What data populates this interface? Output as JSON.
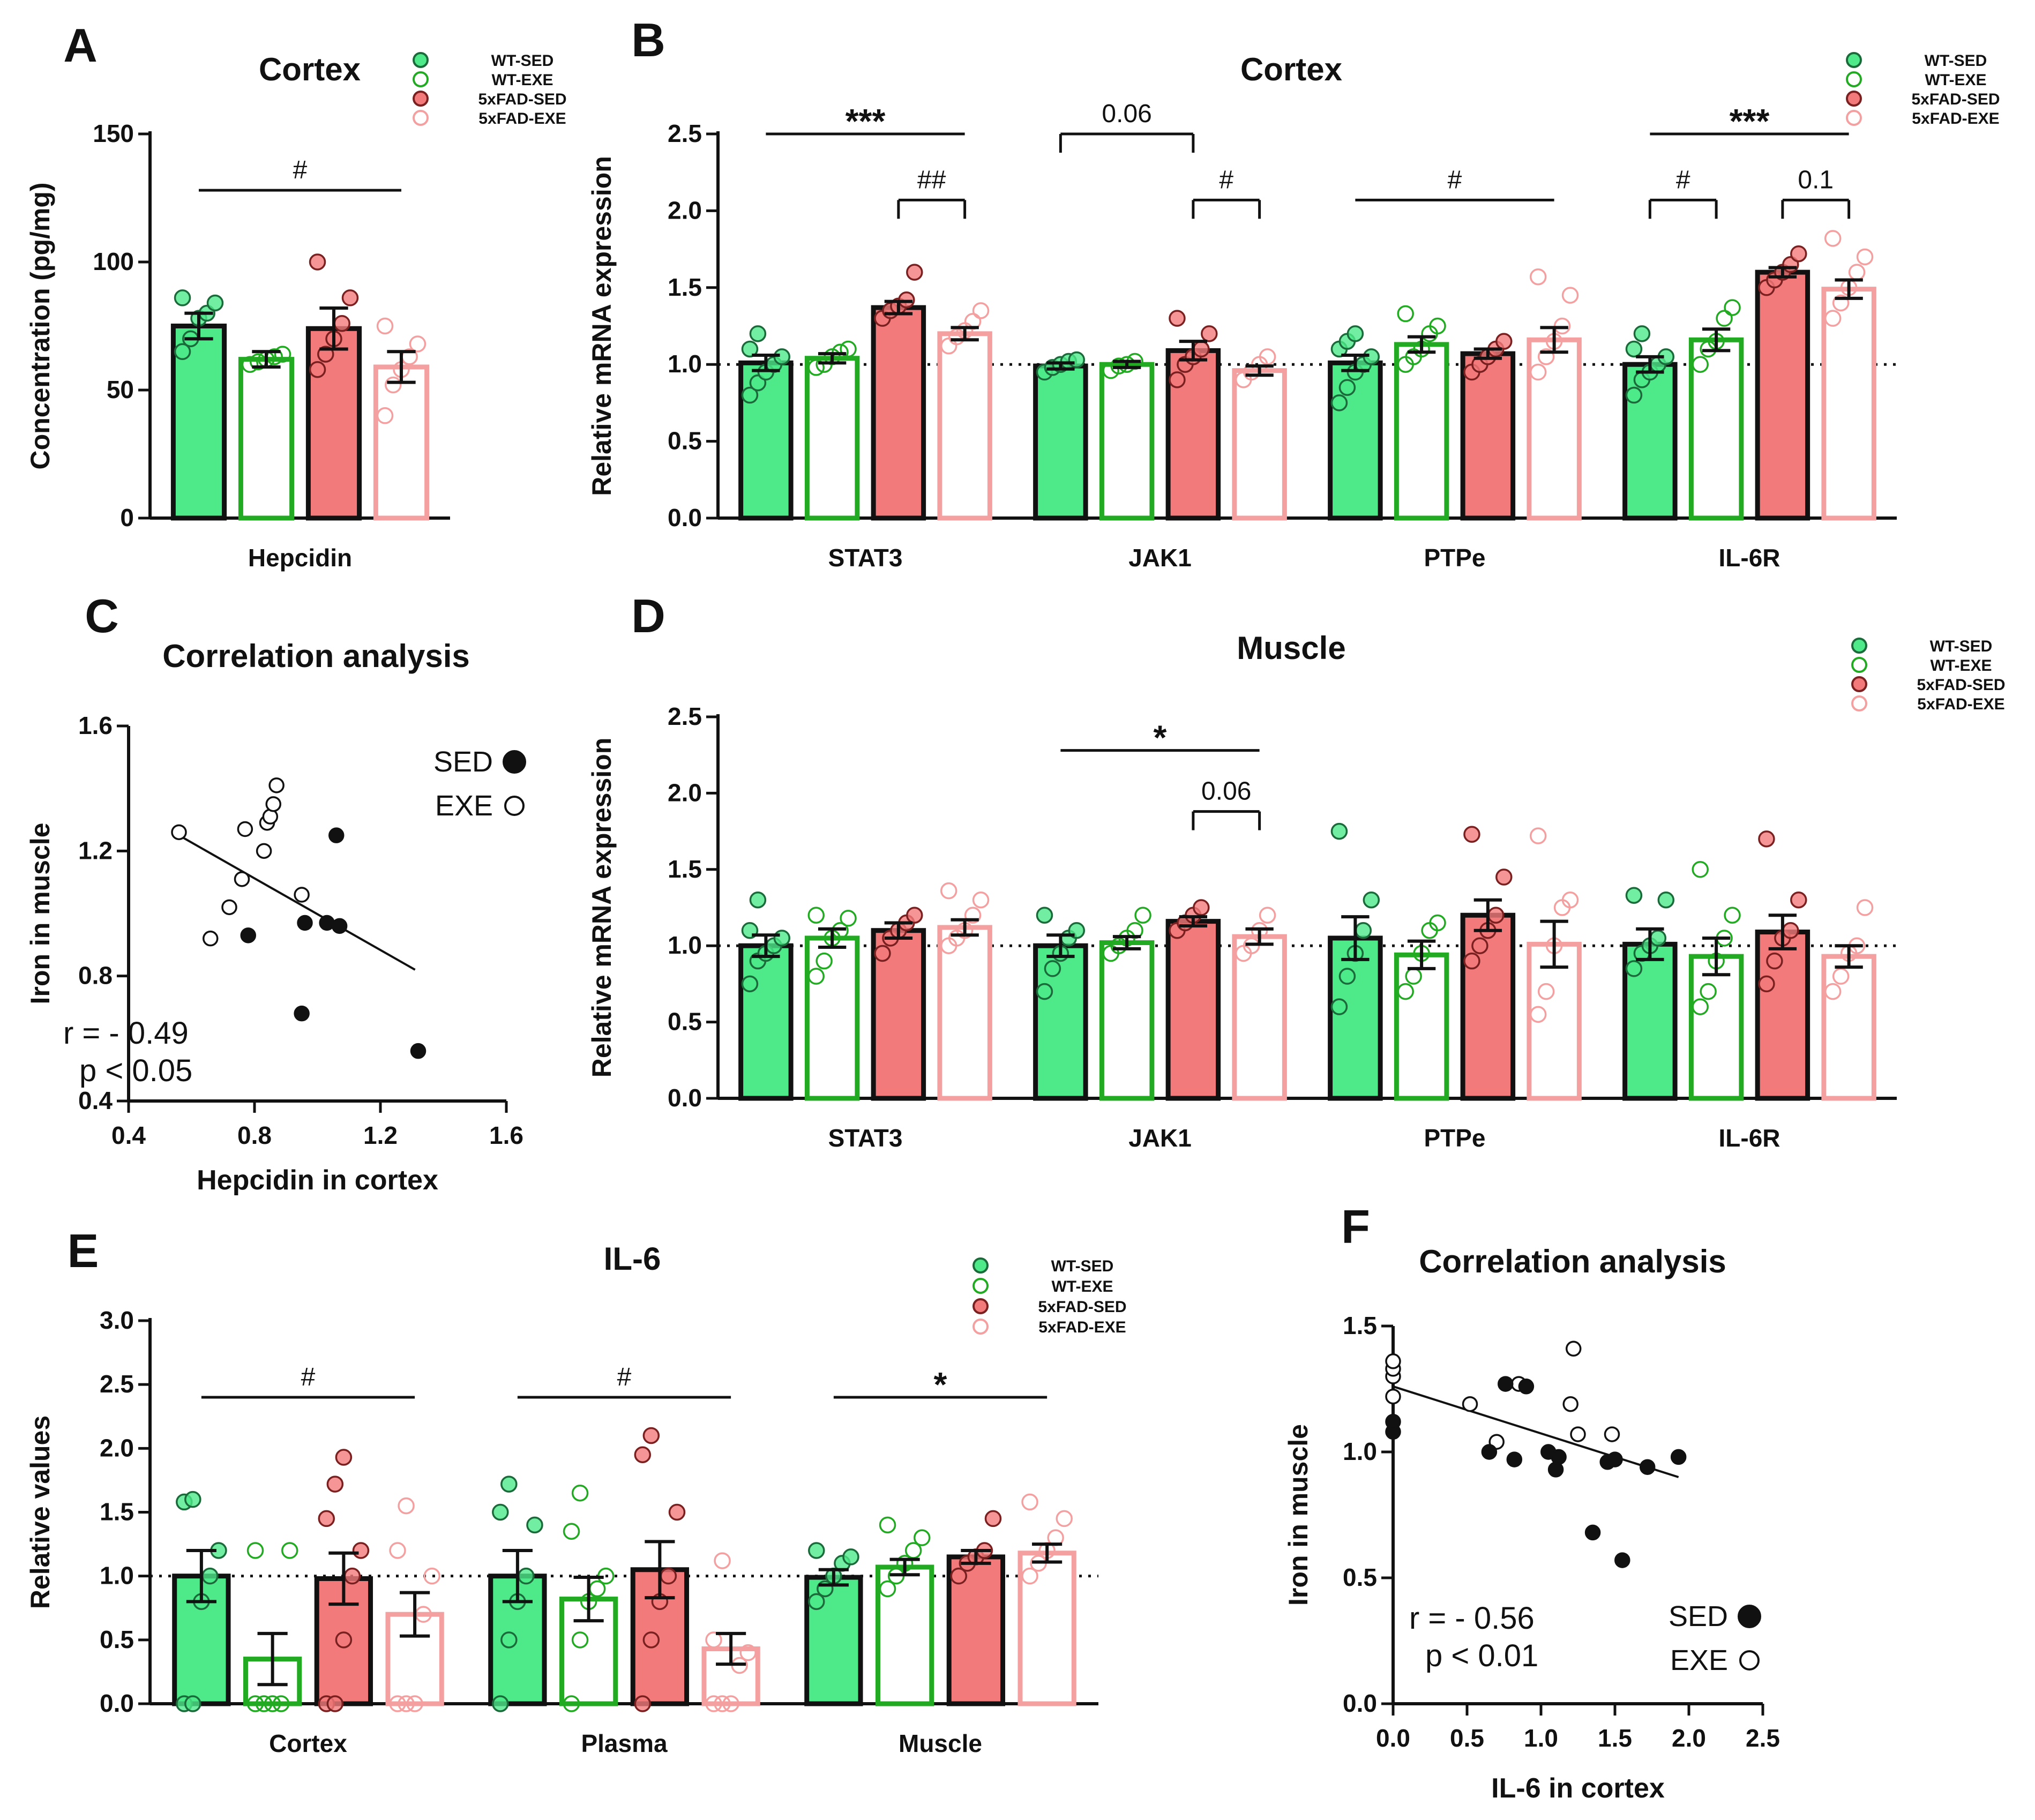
{
  "colors": {
    "wt_sed": "#4eea8a",
    "wt_exe": "#22aa22",
    "fad_sed": "#f27a7a",
    "fad_exe": "#f5a0a0",
    "stat_red": "#e8201a",
    "axis": "#111111"
  },
  "legend": {
    "labels": [
      "WT-SED",
      "WT-EXE",
      "5xFAD-SED",
      "5xFAD-EXE"
    ]
  },
  "corr_legend": {
    "sed": "SED",
    "exe": "EXE"
  },
  "chart_data": [
    {
      "id": "A",
      "panel_letter": "A",
      "type": "bar",
      "title": "Cortex",
      "ylabel": "Concentration (pg/mg)",
      "xlabel": "",
      "categories": [
        "Hepcidin"
      ],
      "ylim": [
        0,
        150
      ],
      "yticks": [
        0,
        50,
        100,
        150
      ],
      "yticklabels": [
        "0",
        "50",
        "100",
        "150"
      ],
      "reference_line": null,
      "series": [
        {
          "name": "WT-SED",
          "values": [
            75
          ],
          "errors": [
            5
          ],
          "points": [
            [
              65,
              70,
              78,
              80,
              84,
              86
            ]
          ]
        },
        {
          "name": "WT-EXE",
          "values": [
            62
          ],
          "errors": [
            3
          ],
          "points": [
            [
              60,
              61,
              62,
              63,
              64
            ]
          ]
        },
        {
          "name": "5xFAD-SED",
          "values": [
            74
          ],
          "errors": [
            8
          ],
          "points": [
            [
              58,
              64,
              70,
              76,
              86,
              100
            ]
          ]
        },
        {
          "name": "5xFAD-EXE",
          "values": [
            59
          ],
          "errors": [
            6
          ],
          "points": [
            [
              40,
              52,
              58,
              63,
              68,
              75
            ]
          ]
        }
      ],
      "annotations": [
        {
          "type": "line",
          "label": "#",
          "cat": 0,
          "from": 0,
          "to": 3,
          "y": 128
        }
      ]
    },
    {
      "id": "B",
      "panel_letter": "B",
      "type": "bar",
      "title": "Cortex",
      "ylabel": "Relative mRNA expression",
      "xlabel": "",
      "categories": [
        "STAT3",
        "JAK1",
        "PTPe",
        "IL-6R"
      ],
      "ylim": [
        0,
        2.5
      ],
      "yticks": [
        0,
        0.5,
        1.0,
        1.5,
        2.0,
        2.5
      ],
      "yticklabels": [
        "0.0",
        "0.5",
        "1.0",
        "1.5",
        "2.0",
        "2.5"
      ],
      "reference_line": 1.0,
      "series": [
        {
          "name": "WT-SED",
          "values": [
            1.01,
            0.99,
            1.01,
            1.0
          ],
          "errors": [
            0.05,
            0.02,
            0.05,
            0.05
          ],
          "points": [
            [
              0.8,
              0.88,
              0.95,
              1.0,
              1.05,
              1.1,
              1.2
            ],
            [
              0.95,
              0.98,
              1.0,
              1.02,
              1.03
            ],
            [
              0.75,
              0.85,
              0.95,
              1.0,
              1.05,
              1.1,
              1.15,
              1.2
            ],
            [
              0.8,
              0.9,
              0.95,
              1.0,
              1.05,
              1.1,
              1.2
            ]
          ]
        },
        {
          "name": "WT-EXE",
          "values": [
            1.04,
            1.0,
            1.13,
            1.16
          ],
          "errors": [
            0.03,
            0.02,
            0.05,
            0.07
          ],
          "points": [
            [
              0.98,
              1.0,
              1.05,
              1.08,
              1.1
            ],
            [
              0.96,
              0.99,
              1.0,
              1.02
            ],
            [
              1.0,
              1.05,
              1.1,
              1.2,
              1.25,
              1.33
            ],
            [
              1.0,
              1.1,
              1.15,
              1.3,
              1.37
            ]
          ]
        },
        {
          "name": "5xFAD-SED",
          "values": [
            1.37,
            1.09,
            1.07,
            1.6
          ],
          "errors": [
            0.04,
            0.06,
            0.03,
            0.03
          ],
          "points": [
            [
              1.3,
              1.35,
              1.38,
              1.42,
              1.6
            ],
            [
              0.9,
              1.0,
              1.05,
              1.1,
              1.2,
              1.3
            ],
            [
              0.95,
              1.0,
              1.05,
              1.1,
              1.15
            ],
            [
              1.5,
              1.55,
              1.6,
              1.65,
              1.72
            ]
          ]
        },
        {
          "name": "5xFAD-EXE",
          "values": [
            1.2,
            0.96,
            1.16,
            1.49
          ],
          "errors": [
            0.04,
            0.03,
            0.08,
            0.06
          ],
          "points": [
            [
              1.12,
              1.18,
              1.22,
              1.28,
              1.35
            ],
            [
              0.9,
              0.95,
              1.0,
              1.05
            ],
            [
              0.95,
              1.05,
              1.15,
              1.25,
              1.45,
              1.57
            ],
            [
              1.3,
              1.4,
              1.5,
              1.6,
              1.7,
              1.82
            ]
          ]
        }
      ],
      "annotations": [
        {
          "type": "line",
          "label": "***",
          "cat": 0,
          "from": 0,
          "to": 3,
          "y": 2.5
        },
        {
          "type": "bracket",
          "label": "##",
          "cat": 0,
          "from": 2,
          "to": 3,
          "y": 2.07
        },
        {
          "type": "bracket",
          "label": "0.06",
          "cat": 1,
          "from": 0,
          "to": 2,
          "y": 2.5
        },
        {
          "type": "bracket",
          "label": "#",
          "cat": 1,
          "from": 2,
          "to": 3,
          "y": 2.07
        },
        {
          "type": "line",
          "label": "#",
          "cat": 2,
          "from": 0,
          "to": 3,
          "y": 2.07
        },
        {
          "type": "line",
          "label": "***",
          "cat": 3,
          "from": 0,
          "to": 3,
          "y": 2.5
        },
        {
          "type": "bracket",
          "label": "#",
          "cat": 3,
          "from": 0,
          "to": 1,
          "y": 2.07
        },
        {
          "type": "bracket",
          "label": "0.1",
          "cat": 3,
          "from": 2,
          "to": 3,
          "y": 2.07
        }
      ]
    },
    {
      "id": "D",
      "panel_letter": "D",
      "type": "bar",
      "title": "Muscle",
      "ylabel": "Relative mRNA expression",
      "xlabel": "",
      "categories": [
        "STAT3",
        "JAK1",
        "PTPe",
        "IL-6R"
      ],
      "ylim": [
        0,
        2.5
      ],
      "yticks": [
        0,
        0.5,
        1.0,
        1.5,
        2.0,
        2.5
      ],
      "yticklabels": [
        "0.0",
        "0.5",
        "1.0",
        "1.5",
        "2.0",
        "2.5"
      ],
      "reference_line": 1.0,
      "series": [
        {
          "name": "WT-SED",
          "values": [
            1.0,
            1.0,
            1.05,
            1.01
          ],
          "errors": [
            0.07,
            0.07,
            0.14,
            0.1
          ],
          "points": [
            [
              0.75,
              0.9,
              0.95,
              1.0,
              1.05,
              1.1,
              1.3
            ],
            [
              0.7,
              0.85,
              0.95,
              1.05,
              1.1,
              1.2
            ],
            [
              0.6,
              0.8,
              0.95,
              1.1,
              1.3,
              1.75
            ],
            [
              0.85,
              0.95,
              1.0,
              1.05,
              1.3,
              1.33
            ]
          ]
        },
        {
          "name": "WT-EXE",
          "values": [
            1.05,
            1.02,
            0.94,
            0.93
          ],
          "errors": [
            0.06,
            0.04,
            0.09,
            0.12
          ],
          "points": [
            [
              0.8,
              0.9,
              1.05,
              1.1,
              1.18,
              1.2
            ],
            [
              0.95,
              1.0,
              1.05,
              1.1,
              1.2
            ],
            [
              0.7,
              0.8,
              0.95,
              1.1,
              1.15
            ],
            [
              0.6,
              0.7,
              0.9,
              1.05,
              1.2,
              1.5
            ]
          ]
        },
        {
          "name": "5xFAD-SED",
          "values": [
            1.1,
            1.16,
            1.2,
            1.09
          ],
          "errors": [
            0.05,
            0.03,
            0.1,
            0.11
          ],
          "points": [
            [
              0.95,
              1.05,
              1.1,
              1.15,
              1.2
            ],
            [
              1.1,
              1.15,
              1.2,
              1.25
            ],
            [
              0.9,
              1.0,
              1.1,
              1.2,
              1.45,
              1.73
            ],
            [
              0.75,
              0.9,
              1.05,
              1.1,
              1.3,
              1.7
            ]
          ]
        },
        {
          "name": "5xFAD-EXE",
          "values": [
            1.12,
            1.06,
            1.01,
            0.93
          ],
          "errors": [
            0.05,
            0.05,
            0.15,
            0.07
          ],
          "points": [
            [
              1.0,
              1.05,
              1.1,
              1.2,
              1.3,
              1.36
            ],
            [
              0.95,
              1.0,
              1.1,
              1.2
            ],
            [
              0.55,
              0.7,
              1.0,
              1.25,
              1.3,
              1.72
            ],
            [
              0.7,
              0.8,
              0.95,
              1.0,
              1.25
            ]
          ]
        }
      ],
      "annotations": [
        {
          "type": "line",
          "label": "*",
          "cat": 1,
          "from": 0,
          "to": 3,
          "y": 2.28
        },
        {
          "type": "bracket",
          "label": "0.06",
          "cat": 1,
          "from": 2,
          "to": 3,
          "y": 1.88
        }
      ]
    },
    {
      "id": "E",
      "panel_letter": "E",
      "type": "bar",
      "title": "IL-6",
      "ylabel": "Relative values",
      "xlabel": "",
      "categories": [
        "Cortex",
        "Plasma",
        "Muscle"
      ],
      "ylim": [
        0,
        3.0
      ],
      "yticks": [
        0,
        0.5,
        1.0,
        1.5,
        2.0,
        2.5,
        3.0
      ],
      "yticklabels": [
        "0.0",
        "0.5",
        "1.0",
        "1.5",
        "2.0",
        "2.5",
        "3.0"
      ],
      "reference_line": 1.0,
      "series": [
        {
          "name": "WT-SED",
          "values": [
            1.0,
            1.0,
            0.99
          ],
          "errors": [
            0.2,
            0.2,
            0.06
          ],
          "points": [
            [
              0,
              0,
              0.8,
              1.0,
              1.2,
              1.58,
              1.6
            ],
            [
              0,
              0.5,
              0.8,
              1.0,
              1.4,
              1.5,
              1.72
            ],
            [
              0.8,
              0.9,
              1.0,
              1.1,
              1.15,
              1.2
            ]
          ]
        },
        {
          "name": "WT-EXE",
          "values": [
            0.35,
            0.82,
            1.07
          ],
          "errors": [
            0.2,
            0.17,
            0.06
          ],
          "points": [
            [
              0,
              0,
              0,
              0,
              1.2,
              1.2
            ],
            [
              0,
              0.5,
              0.8,
              0.9,
              1.0,
              1.35,
              1.65
            ],
            [
              0.9,
              1.0,
              1.1,
              1.2,
              1.3,
              1.4
            ]
          ]
        },
        {
          "name": "5xFAD-SED",
          "values": [
            0.98,
            1.05,
            1.15
          ],
          "errors": [
            0.2,
            0.22,
            0.05
          ],
          "points": [
            [
              0,
              0,
              0.5,
              1.0,
              1.2,
              1.45,
              1.72,
              1.93
            ],
            [
              0,
              0.5,
              0.8,
              1.0,
              1.5,
              1.95,
              2.1
            ],
            [
              1.0,
              1.1,
              1.15,
              1.2,
              1.45
            ]
          ]
        },
        {
          "name": "5xFAD-EXE",
          "values": [
            0.7,
            0.43,
            1.18
          ],
          "errors": [
            0.17,
            0.12,
            0.07
          ],
          "points": [
            [
              0,
              0,
              0,
              0.7,
              1.0,
              1.2,
              1.55
            ],
            [
              0,
              0,
              0,
              0.3,
              0.4,
              0.5,
              1.12
            ],
            [
              1.0,
              1.1,
              1.2,
              1.3,
              1.45,
              1.58
            ]
          ]
        }
      ],
      "annotations": [
        {
          "type": "line",
          "label": "#",
          "cat": 0,
          "from": 0,
          "to": 3,
          "y": 2.4
        },
        {
          "type": "line",
          "label": "#",
          "cat": 1,
          "from": 0,
          "to": 3,
          "y": 2.4
        },
        {
          "type": "line",
          "label": "*",
          "cat": 2,
          "from": 0,
          "to": 3,
          "y": 2.4
        }
      ]
    },
    {
      "id": "C",
      "panel_letter": "C",
      "type": "scatter",
      "title": "Correlation analysis",
      "xlabel": "Hepcidin in cortex",
      "ylabel": "Iron in muscle",
      "xlim": [
        0.4,
        1.6
      ],
      "ylim": [
        0.4,
        1.6
      ],
      "xticks": [
        0.4,
        0.8,
        1.2,
        1.6
      ],
      "xticklabels": [
        "0.4",
        "0.8",
        "1.2",
        "1.6"
      ],
      "yticks": [
        0.4,
        0.8,
        1.2,
        1.6
      ],
      "yticklabels": [
        "0.4",
        "0.8",
        "1.2",
        "1.6"
      ],
      "r_text": "r = - 0.49",
      "p_text": "p < 0.05",
      "sed_points": [
        [
          0.78,
          0.93
        ],
        [
          0.96,
          0.97
        ],
        [
          0.95,
          0.68
        ],
        [
          1.03,
          0.97
        ],
        [
          1.07,
          0.96
        ],
        [
          1.06,
          1.25
        ],
        [
          1.32,
          0.56
        ]
      ],
      "exe_points": [
        [
          0.56,
          1.26
        ],
        [
          0.66,
          0.92
        ],
        [
          0.72,
          1.02
        ],
        [
          0.76,
          1.11
        ],
        [
          0.77,
          1.27
        ],
        [
          0.83,
          1.2
        ],
        [
          0.84,
          1.29
        ],
        [
          0.85,
          1.31
        ],
        [
          0.86,
          1.35
        ],
        [
          0.87,
          1.41
        ],
        [
          0.95,
          1.06
        ]
      ],
      "fit": {
        "x1": 0.56,
        "y1": 1.25,
        "x2": 1.31,
        "y2": 0.82
      }
    },
    {
      "id": "F",
      "panel_letter": "F",
      "type": "scatter",
      "title": "Correlation analysis",
      "xlabel": "IL-6 in cortex",
      "ylabel": "Iron in muscle",
      "xlim": [
        0,
        2.5
      ],
      "ylim": [
        0,
        1.5
      ],
      "xticks": [
        0,
        0.5,
        1.0,
        1.5,
        2.0,
        2.5
      ],
      "xticklabels": [
        "0.0",
        "0.5",
        "1.0",
        "1.5",
        "2.0",
        "2.5"
      ],
      "yticks": [
        0,
        0.5,
        1.0,
        1.5
      ],
      "yticklabels": [
        "0.0",
        "0.5",
        "1.0",
        "1.5"
      ],
      "r_text": "r = - 0.56",
      "p_text": "p < 0.01",
      "sed_points": [
        [
          0.0,
          1.08
        ],
        [
          0.0,
          1.12
        ],
        [
          0.65,
          1.0
        ],
        [
          0.76,
          1.27
        ],
        [
          0.82,
          0.97
        ],
        [
          0.9,
          1.26
        ],
        [
          1.05,
          1.0
        ],
        [
          1.1,
          0.93
        ],
        [
          1.12,
          0.98
        ],
        [
          1.35,
          0.68
        ],
        [
          1.45,
          0.96
        ],
        [
          1.5,
          0.97
        ],
        [
          1.55,
          0.57
        ],
        [
          1.72,
          0.94
        ],
        [
          1.93,
          0.98
        ]
      ],
      "exe_points": [
        [
          0.0,
          1.22
        ],
        [
          0.0,
          1.3
        ],
        [
          0.0,
          1.33
        ],
        [
          0.0,
          1.36
        ],
        [
          0.52,
          1.19
        ],
        [
          0.7,
          1.04
        ],
        [
          0.85,
          1.27
        ],
        [
          1.2,
          1.19
        ],
        [
          1.22,
          1.41
        ],
        [
          1.25,
          1.07
        ],
        [
          1.48,
          1.07
        ]
      ],
      "fit": {
        "x1": 0.0,
        "y1": 1.26,
        "x2": 1.93,
        "y2": 0.9
      }
    }
  ]
}
